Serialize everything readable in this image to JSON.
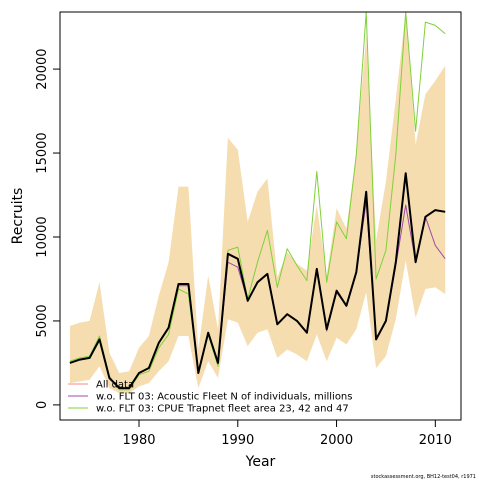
{
  "chart_data": {
    "type": "line",
    "title": "",
    "xlabel": "Year",
    "ylabel": "Recruits",
    "xlim": [
      1972,
      2012.6
    ],
    "ylim": [
      -900,
      23400
    ],
    "xticks": [
      1980,
      1990,
      2000,
      2010
    ],
    "yticks": [
      0,
      5000,
      10000,
      15000,
      20000
    ],
    "grid": false,
    "legend_position": "bottom-left",
    "x": [
      1973,
      1974,
      1975,
      1976,
      1977,
      1978,
      1979,
      1980,
      1981,
      1982,
      1983,
      1984,
      1985,
      1986,
      1987,
      1988,
      1989,
      1990,
      1991,
      1992,
      1993,
      1994,
      1995,
      1996,
      1997,
      1998,
      1999,
      2000,
      2001,
      2002,
      2003,
      2004,
      2005,
      2006,
      2007,
      2008,
      2009,
      2010,
      2011
    ],
    "band": {
      "lower": [
        1300,
        1400,
        1500,
        2300,
        1000,
        700,
        700,
        1100,
        1300,
        2000,
        2600,
        4100,
        4100,
        1000,
        2600,
        1600,
        5100,
        4900,
        3500,
        4300,
        4500,
        2800,
        3300,
        3000,
        2600,
        4200,
        2600,
        4000,
        3600,
        4500,
        6700,
        2200,
        2900,
        5100,
        8600,
        5200,
        6900,
        7000,
        6600
      ],
      "upper": [
        4700,
        4900,
        5000,
        7300,
        3100,
        1900,
        2000,
        3400,
        4100,
        6500,
        8500,
        13000,
        13000,
        3300,
        7700,
        4500,
        15900,
        15200,
        10900,
        12700,
        13500,
        7600,
        9100,
        8400,
        8000,
        11900,
        7700,
        11700,
        10500,
        15000,
        22000,
        9800,
        13300,
        18200,
        23400,
        15500,
        18500,
        19300,
        20200
      ],
      "color": "#f5ddb0"
    },
    "series": [
      {
        "name": "All data",
        "color": "#f08a8a",
        "values": [
          2500,
          2700,
          2800,
          3900,
          1600,
          1000,
          1000,
          1900,
          2200,
          3700,
          4600,
          7200,
          7200,
          1900,
          4300,
          2500,
          9000,
          8700,
          6200,
          7300,
          7800,
          4800,
          5400,
          5000,
          4300,
          8100,
          4500,
          6800,
          5900,
          7900,
          12700,
          3900,
          5000,
          8500,
          13800,
          8500,
          11200,
          11600,
          11500
        ]
      },
      {
        "name": "w.o. FLT 03: Acoustic Fleet  N of individuals, millions",
        "color": "#a04aa8",
        "values": [
          2500,
          2700,
          2800,
          3900,
          1600,
          1000,
          1000,
          1900,
          2200,
          3700,
          4600,
          7100,
          7100,
          1900,
          4300,
          2500,
          8500,
          8200,
          6200,
          7300,
          7800,
          4800,
          5400,
          5000,
          4300,
          8100,
          4400,
          6700,
          5900,
          7900,
          12100,
          3900,
          5000,
          8300,
          11900,
          8500,
          11200,
          9500,
          8700
        ]
      },
      {
        "name": "w.o. FLT 03: CPUE Trapnet fleet area 23, 42 and 47",
        "color": "#7fd13a",
        "values": [
          2600,
          2800,
          2900,
          4100,
          1700,
          900,
          900,
          1800,
          2000,
          3400,
          4200,
          6900,
          6600,
          2000,
          4200,
          2300,
          9200,
          9400,
          6300,
          8500,
          10400,
          7000,
          9300,
          8300,
          7400,
          13900,
          7300,
          10900,
          9900,
          14900,
          23400,
          7500,
          9200,
          14900,
          23400,
          16300,
          22800,
          22600,
          22100
        ]
      },
      {
        "name": "",
        "color": "#000000",
        "width": 2,
        "values": [
          2500,
          2700,
          2800,
          3900,
          1600,
          1000,
          1000,
          1900,
          2200,
          3700,
          4600,
          7200,
          7200,
          1900,
          4300,
          2500,
          9000,
          8700,
          6200,
          7300,
          7800,
          4800,
          5400,
          5000,
          4300,
          8100,
          4500,
          6800,
          5900,
          7900,
          12700,
          3900,
          5000,
          8500,
          13800,
          8500,
          11200,
          11600,
          11500
        ]
      }
    ]
  },
  "footnote": "stockassessment.org, BH12-test04, r1971"
}
